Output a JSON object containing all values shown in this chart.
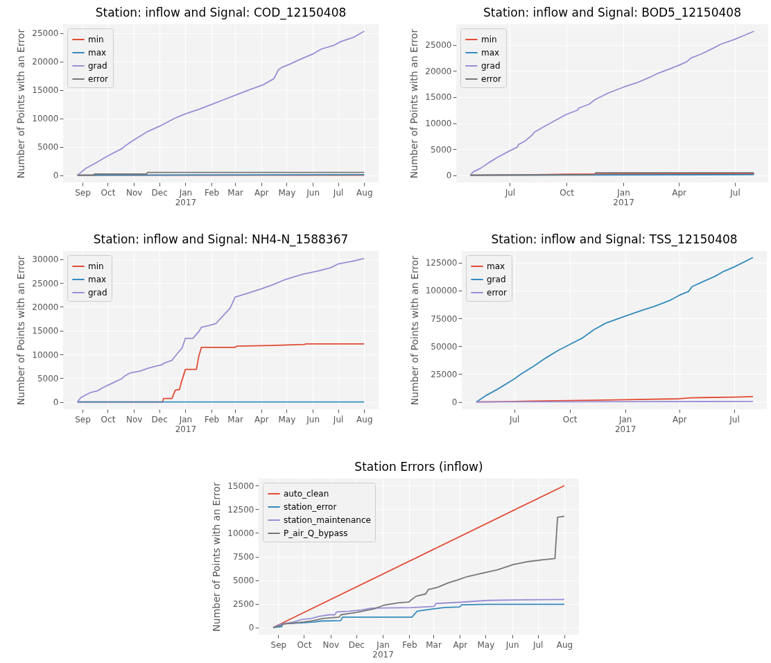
{
  "chart_data": [
    {
      "type": "line",
      "title": "Station: inflow and Signal: COD_12150408",
      "ylabel": "Number of Points with an Error",
      "xlim": [
        "2016-08-09",
        "2017-08-18"
      ],
      "xticks": [
        {
          "value": "2016-09-01",
          "label": "Sep"
        },
        {
          "value": "2016-10-01",
          "label": "Oct"
        },
        {
          "value": "2016-11-01",
          "label": "Nov"
        },
        {
          "value": "2016-12-01",
          "label": "Dec"
        },
        {
          "value": "2017-01-01",
          "label": "Jan\n2017"
        },
        {
          "value": "2017-02-01",
          "label": "Feb"
        },
        {
          "value": "2017-03-01",
          "label": "Mar"
        },
        {
          "value": "2017-04-01",
          "label": "Apr"
        },
        {
          "value": "2017-05-01",
          "label": "May"
        },
        {
          "value": "2017-06-01",
          "label": "Jun"
        },
        {
          "value": "2017-07-01",
          "label": "Jul"
        },
        {
          "value": "2017-08-01",
          "label": "Aug"
        }
      ],
      "ylim": [
        -1265,
        26565
      ],
      "yticks": [
        0,
        5000,
        10000,
        15000,
        20000,
        25000
      ],
      "grid": true,
      "legend": "top left",
      "series": [
        {
          "name": "min",
          "color": "#e24a33",
          "x": [
            "2016-08-26",
            "2017-08-01"
          ],
          "values": [
            0,
            0
          ]
        },
        {
          "name": "max",
          "color": "#348abd",
          "x": [
            "2016-08-26",
            "2017-08-01"
          ],
          "values": [
            0,
            100
          ]
        },
        {
          "name": "grad",
          "color": "#988ed5",
          "x": [
            "2016-08-26",
            "2016-09-05",
            "2016-09-16",
            "2016-10-01",
            "2016-10-18",
            "2016-10-21",
            "2016-11-01",
            "2016-11-13",
            "2016-11-16",
            "2016-12-01",
            "2016-12-19",
            "2017-01-01",
            "2017-01-17",
            "2017-02-01",
            "2017-02-14",
            "2017-03-03",
            "2017-03-18",
            "2017-04-03",
            "2017-04-16",
            "2017-04-21",
            "2017-04-25",
            "2017-05-04",
            "2017-05-18",
            "2017-06-02",
            "2017-06-11",
            "2017-06-26",
            "2017-07-04",
            "2017-07-19",
            "2017-08-01"
          ],
          "values": [
            0,
            1200,
            2100,
            3400,
            4700,
            5100,
            6200,
            7300,
            7600,
            8600,
            10000,
            10800,
            11600,
            12450,
            13200,
            14200,
            15050,
            15900,
            17000,
            18500,
            18950,
            19500,
            20450,
            21400,
            22200,
            22850,
            23500,
            24250,
            25350
          ]
        },
        {
          "name": "error",
          "color": "#777777",
          "x": [
            "2016-08-26",
            "2016-09-14",
            "2016-09-15",
            "2016-11-16",
            "2016-11-17",
            "2017-08-01"
          ],
          "values": [
            0,
            0,
            200,
            200,
            480,
            480
          ]
        }
      ]
    },
    {
      "type": "line",
      "title": "Station: inflow and Signal: BOD5_12150408",
      "ylabel": "Number of Points with an Error",
      "xlim": [
        "2016-04-05",
        "2017-08-24"
      ],
      "xticks": [
        {
          "value": "2016-07-01",
          "label": "Jul"
        },
        {
          "value": "2016-10-01",
          "label": "Oct"
        },
        {
          "value": "2017-01-01",
          "label": "Jan\n2017"
        },
        {
          "value": "2017-04-01",
          "label": "Apr"
        },
        {
          "value": "2017-07-01",
          "label": "Jul"
        }
      ],
      "ylim": [
        -1380,
        28980
      ],
      "yticks": [
        0,
        5000,
        10000,
        15000,
        20000,
        25000
      ],
      "grid": true,
      "legend": "top left",
      "series": [
        {
          "name": "min",
          "color": "#e24a33",
          "x": [
            "2016-04-28",
            "2016-08-09",
            "2016-10-01",
            "2017-08-01"
          ],
          "values": [
            0,
            100,
            200,
            300
          ]
        },
        {
          "name": "max",
          "color": "#348abd",
          "x": [
            "2016-04-28",
            "2017-08-01"
          ],
          "values": [
            0,
            100
          ]
        },
        {
          "name": "grad",
          "color": "#988ed5",
          "x": [
            "2016-04-28",
            "2016-05-02",
            "2016-05-14",
            "2016-05-29",
            "2016-06-11",
            "2016-07-01",
            "2016-07-13",
            "2016-07-15",
            "2016-07-25",
            "2016-08-07",
            "2016-08-09",
            "2016-08-25",
            "2016-09-11",
            "2016-10-01",
            "2016-10-19",
            "2016-10-21",
            "2016-11-06",
            "2016-11-16",
            "2016-12-08",
            "2017-01-01",
            "2017-01-24",
            "2017-02-13",
            "2017-02-25",
            "2017-03-17",
            "2017-04-01",
            "2017-04-14",
            "2017-04-21",
            "2017-05-07",
            "2017-05-27",
            "2017-06-08",
            "2017-07-01",
            "2017-07-10",
            "2017-08-01"
          ],
          "values": [
            0,
            600,
            1300,
            2500,
            3450,
            4700,
            5400,
            5900,
            6500,
            7800,
            8200,
            9300,
            10400,
            11700,
            12500,
            12900,
            13600,
            14500,
            15800,
            16900,
            17800,
            18800,
            19500,
            20400,
            21100,
            21800,
            22500,
            23250,
            24400,
            25150,
            26100,
            26550,
            27650
          ]
        },
        {
          "name": "error",
          "color": "#777777",
          "x": [
            "2016-04-28",
            "2016-11-16",
            "2016-11-17",
            "2017-08-01"
          ],
          "values": [
            0,
            100,
            470,
            470
          ]
        }
      ]
    },
    {
      "type": "line",
      "title": "Station: inflow and Signal: NH4-N_1588367",
      "ylabel": "Number of Points with an Error",
      "xlim": [
        "2016-08-09",
        "2017-08-18"
      ],
      "xticks": [
        {
          "value": "2016-09-01",
          "label": "Sep"
        },
        {
          "value": "2016-10-01",
          "label": "Oct"
        },
        {
          "value": "2016-11-01",
          "label": "Nov"
        },
        {
          "value": "2016-12-01",
          "label": "Dec"
        },
        {
          "value": "2017-01-01",
          "label": "Jan\n2017"
        },
        {
          "value": "2017-02-01",
          "label": "Feb"
        },
        {
          "value": "2017-03-01",
          "label": "Mar"
        },
        {
          "value": "2017-04-01",
          "label": "Apr"
        },
        {
          "value": "2017-05-01",
          "label": "May"
        },
        {
          "value": "2017-06-01",
          "label": "Jun"
        },
        {
          "value": "2017-07-01",
          "label": "Jul"
        },
        {
          "value": "2017-08-01",
          "label": "Aug"
        }
      ],
      "ylim": [
        -1510,
        31710
      ],
      "yticks": [
        0,
        5000,
        10000,
        15000,
        20000,
        25000,
        30000
      ],
      "grid": true,
      "legend": "top left",
      "series": [
        {
          "name": "min",
          "color": "#e24a33",
          "x": [
            "2016-08-26",
            "2016-12-05",
            "2016-12-06",
            "2016-12-16",
            "2016-12-20",
            "2016-12-25",
            "2016-12-27",
            "2017-01-01",
            "2017-01-14",
            "2017-01-17",
            "2017-01-20",
            "2017-03-01",
            "2017-03-03",
            "2017-04-14",
            "2017-05-22",
            "2017-05-24",
            "2017-08-01"
          ],
          "values": [
            0,
            0,
            720,
            720,
            2470,
            2620,
            4010,
            6850,
            6850,
            9680,
            11480,
            11480,
            11730,
            11890,
            12100,
            12200,
            12200
          ]
        },
        {
          "name": "max",
          "color": "#348abd",
          "x": [
            "2016-08-26",
            "2017-08-01"
          ],
          "values": [
            0,
            0
          ]
        },
        {
          "name": "grad",
          "color": "#988ed5",
          "x": [
            "2016-08-26",
            "2016-08-30",
            "2016-09-10",
            "2016-09-19",
            "2016-09-25",
            "2016-10-01",
            "2016-10-10",
            "2016-10-18",
            "2016-10-21",
            "2016-10-27",
            "2016-11-08",
            "2016-11-20",
            "2016-12-05",
            "2016-12-06",
            "2016-12-16",
            "2016-12-19",
            "2016-12-23",
            "2016-12-28",
            "2017-01-01",
            "2017-01-10",
            "2017-01-17",
            "2017-01-20",
            "2017-01-29",
            "2017-02-06",
            "2017-02-15",
            "2017-02-23",
            "2017-03-01",
            "2017-03-15",
            "2017-04-02",
            "2017-04-14",
            "2017-04-28",
            "2017-05-12",
            "2017-05-22",
            "2017-06-05",
            "2017-06-22",
            "2017-07-01",
            "2017-07-16",
            "2017-08-01"
          ],
          "values": [
            0,
            930,
            1950,
            2370,
            3000,
            3500,
            4270,
            4940,
            5460,
            6070,
            6480,
            7200,
            7870,
            8130,
            8750,
            9420,
            10290,
            11320,
            13380,
            13380,
            14820,
            15700,
            16060,
            16470,
            18170,
            19710,
            22030,
            22800,
            23830,
            24600,
            25630,
            26400,
            26920,
            27430,
            28200,
            28980,
            29490,
            30160
          ]
        }
      ]
    },
    {
      "type": "line",
      "title": "Station: inflow and Signal: TSS_12150408",
      "ylabel": "Number of Points with an Error",
      "xlim": [
        "2016-04-05",
        "2017-08-24"
      ],
      "xticks": [
        {
          "value": "2016-07-01",
          "label": "Jul"
        },
        {
          "value": "2016-10-01",
          "label": "Oct"
        },
        {
          "value": "2017-01-01",
          "label": "Jan\n2017"
        },
        {
          "value": "2017-04-01",
          "label": "Apr"
        },
        {
          "value": "2017-07-01",
          "label": "Jul"
        }
      ],
      "ylim": [
        -6450,
        135450
      ],
      "yticks": [
        0,
        25000,
        50000,
        75000,
        100000,
        125000
      ],
      "grid": true,
      "legend": "top left",
      "series": [
        {
          "name": "max",
          "color": "#e24a33",
          "x": [
            "2016-04-29",
            "2016-07-01",
            "2016-10-01",
            "2017-01-01",
            "2017-04-01",
            "2017-04-20",
            "2017-07-01",
            "2017-08-01"
          ],
          "values": [
            0,
            500,
            1300,
            2000,
            2900,
            3760,
            4400,
            4870
          ]
        },
        {
          "name": "grad",
          "color": "#348abd",
          "x": [
            "2016-04-29",
            "2016-05-15",
            "2016-06-02",
            "2016-07-01",
            "2016-07-12",
            "2016-08-01",
            "2016-08-22",
            "2016-09-11",
            "2016-10-01",
            "2016-10-21",
            "2016-11-10",
            "2016-11-30",
            "2017-01-01",
            "2017-01-30",
            "2017-02-19",
            "2017-03-17",
            "2017-04-01",
            "2017-04-16",
            "2017-04-22",
            "2017-05-10",
            "2017-05-30",
            "2017-06-12",
            "2017-07-01",
            "2017-08-01"
          ],
          "values": [
            0,
            5750,
            11060,
            20580,
            25000,
            31640,
            39380,
            46000,
            51550,
            57080,
            64820,
            70800,
            77000,
            82520,
            85840,
            91370,
            95800,
            99100,
            103540,
            107960,
            112830,
            116810,
            121240,
            129650
          ]
        },
        {
          "name": "error",
          "color": "#988ed5",
          "x": [
            "2016-04-29",
            "2016-10-01",
            "2017-08-01"
          ],
          "values": [
            0,
            200,
            450
          ]
        }
      ]
    },
    {
      "type": "line",
      "title": "Station Errors (inflow)",
      "ylabel": "Number of Points with an Error",
      "xlim": [
        "2016-08-09",
        "2017-08-18"
      ],
      "xticks": [
        {
          "value": "2016-09-01",
          "label": "Sep"
        },
        {
          "value": "2016-10-01",
          "label": "Oct"
        },
        {
          "value": "2016-11-01",
          "label": "Nov"
        },
        {
          "value": "2016-12-01",
          "label": "Dec"
        },
        {
          "value": "2017-01-01",
          "label": "Jan\n2017"
        },
        {
          "value": "2017-02-01",
          "label": "Feb"
        },
        {
          "value": "2017-03-01",
          "label": "Mar"
        },
        {
          "value": "2017-04-01",
          "label": "Apr"
        },
        {
          "value": "2017-05-01",
          "label": "May"
        },
        {
          "value": "2017-06-01",
          "label": "Jun"
        },
        {
          "value": "2017-07-01",
          "label": "Jul"
        },
        {
          "value": "2017-08-01",
          "label": "Aug"
        }
      ],
      "ylim": [
        -750,
        15750
      ],
      "yticks": [
        0,
        2500,
        5000,
        7500,
        10000,
        12500,
        15000
      ],
      "grid": true,
      "legend": "top left",
      "series": [
        {
          "name": "auto_clean",
          "color": "#e24a33",
          "x": [
            "2016-08-26",
            "2017-08-01"
          ],
          "values": [
            0,
            15000
          ]
        },
        {
          "name": "station_error",
          "color": "#348abd",
          "x": [
            "2016-08-26",
            "2016-09-05",
            "2016-09-06",
            "2016-10-01",
            "2016-10-13",
            "2016-10-21",
            "2016-11-13",
            "2016-11-15",
            "2017-02-04",
            "2017-02-10",
            "2017-02-19",
            "2017-03-02",
            "2017-03-13",
            "2017-04-01",
            "2017-04-03",
            "2017-05-03",
            "2017-08-01"
          ],
          "values": [
            0,
            80,
            380,
            500,
            580,
            680,
            730,
            1090,
            1090,
            1720,
            1850,
            1970,
            2100,
            2180,
            2400,
            2450,
            2450
          ]
        },
        {
          "name": "station_maintenance",
          "color": "#988ed5",
          "x": [
            "2016-08-26",
            "2016-09-05",
            "2016-09-19",
            "2016-09-28",
            "2016-10-10",
            "2016-10-18",
            "2016-10-30",
            "2016-11-06",
            "2016-11-08",
            "2016-11-23",
            "2016-12-07",
            "2016-12-19",
            "2017-02-04",
            "2017-03-02",
            "2017-03-04",
            "2017-04-03",
            "2017-05-03",
            "2017-06-16",
            "2017-08-01"
          ],
          "values": [
            0,
            380,
            580,
            830,
            960,
            1160,
            1340,
            1340,
            1640,
            1720,
            1850,
            2050,
            2100,
            2230,
            2530,
            2680,
            2860,
            2930,
            2960
          ]
        },
        {
          "name": "P_air_Q_bypass",
          "color": "#777777",
          "x": [
            "2016-08-26",
            "2016-09-02",
            "2016-09-08",
            "2016-10-01",
            "2016-10-11",
            "2016-10-24",
            "2016-11-11",
            "2016-11-13",
            "2016-12-01",
            "2016-12-22",
            "2017-01-02",
            "2017-01-20",
            "2017-01-31",
            "2017-02-06",
            "2017-02-09",
            "2017-02-20",
            "2017-02-23",
            "2017-03-06",
            "2017-03-18",
            "2017-03-29",
            "2017-04-10",
            "2017-04-25",
            "2017-05-15",
            "2017-06-02",
            "2017-06-19",
            "2017-07-07",
            "2017-07-21",
            "2017-07-24",
            "2017-08-01"
          ],
          "values": [
            0,
            150,
            380,
            580,
            710,
            960,
            1090,
            1340,
            1590,
            1970,
            2350,
            2610,
            2680,
            3110,
            3310,
            3540,
            4000,
            4250,
            4700,
            5010,
            5390,
            5690,
            6100,
            6650,
            6960,
            7160,
            7290,
            11660,
            11760
          ]
        }
      ]
    }
  ]
}
